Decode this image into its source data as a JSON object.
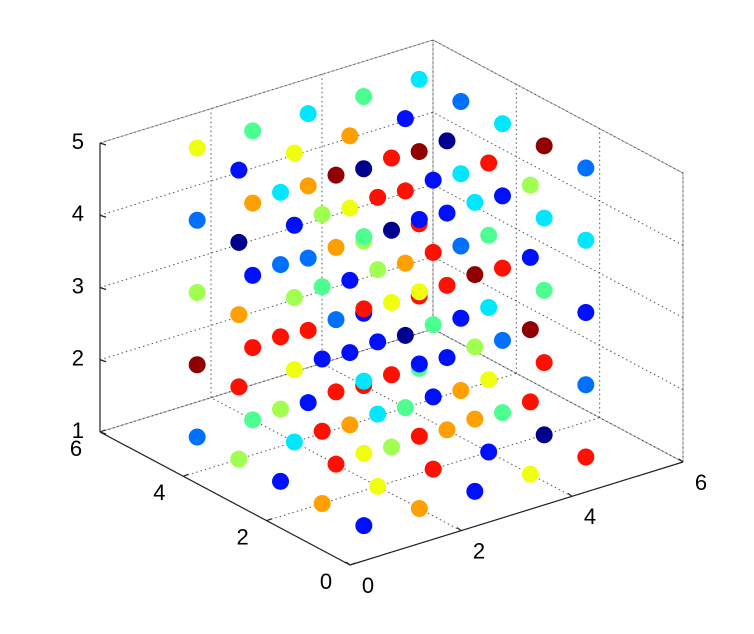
{
  "chart_data": {
    "type": "scatter3d",
    "xlim": [
      0,
      6
    ],
    "ylim": [
      0,
      6
    ],
    "zlim": [
      1,
      5
    ],
    "xticks": [
      0,
      2,
      4,
      6
    ],
    "yticks": [
      0,
      2,
      4,
      6
    ],
    "zticks": [
      1,
      2,
      3,
      4,
      5
    ],
    "grid": true,
    "x": [
      1,
      1,
      1,
      1,
      1,
      1,
      1,
      1,
      1,
      1,
      1,
      1,
      1,
      1,
      1,
      1,
      1,
      1,
      1,
      1,
      1,
      1,
      1,
      1,
      1,
      2,
      2,
      2,
      2,
      2,
      2,
      2,
      2,
      2,
      2,
      2,
      2,
      2,
      2,
      2,
      2,
      2,
      2,
      2,
      2,
      2,
      2,
      2,
      2,
      2,
      3,
      3,
      3,
      3,
      3,
      3,
      3,
      3,
      3,
      3,
      3,
      3,
      3,
      3,
      3,
      3,
      3,
      3,
      3,
      3,
      3,
      3,
      3,
      3,
      3,
      4,
      4,
      4,
      4,
      4,
      4,
      4,
      4,
      4,
      4,
      4,
      4,
      4,
      4,
      4,
      4,
      4,
      4,
      4,
      4,
      4,
      4,
      4,
      4,
      4,
      5,
      5,
      5,
      5,
      5,
      5,
      5,
      5,
      5,
      5,
      5,
      5,
      5,
      5,
      5,
      5,
      5,
      5,
      5,
      5,
      5,
      5,
      5,
      5,
      5
    ],
    "y": [
      1,
      1,
      1,
      1,
      1,
      2,
      2,
      2,
      2,
      2,
      3,
      3,
      3,
      3,
      3,
      4,
      4,
      4,
      4,
      4,
      5,
      5,
      5,
      5,
      5,
      1,
      1,
      1,
      1,
      1,
      2,
      2,
      2,
      2,
      2,
      3,
      3,
      3,
      3,
      3,
      4,
      4,
      4,
      4,
      4,
      5,
      5,
      5,
      5,
      5,
      1,
      1,
      1,
      1,
      1,
      2,
      2,
      2,
      2,
      2,
      3,
      3,
      3,
      3,
      3,
      4,
      4,
      4,
      4,
      4,
      5,
      5,
      5,
      5,
      5,
      1,
      1,
      1,
      1,
      1,
      2,
      2,
      2,
      2,
      2,
      3,
      3,
      3,
      3,
      3,
      4,
      4,
      4,
      4,
      4,
      5,
      5,
      5,
      5,
      5,
      1,
      1,
      1,
      1,
      1,
      2,
      2,
      2,
      2,
      2,
      3,
      3,
      3,
      3,
      3,
      4,
      4,
      4,
      4,
      4,
      5,
      5,
      5,
      5,
      5
    ],
    "z": [
      1,
      2,
      3,
      4,
      5,
      1,
      2,
      3,
      4,
      5,
      1,
      2,
      3,
      4,
      5,
      1,
      2,
      3,
      4,
      5,
      1,
      2,
      3,
      4,
      5,
      1,
      2,
      3,
      4,
      5,
      1,
      2,
      3,
      4,
      5,
      1,
      2,
      3,
      4,
      5,
      1,
      2,
      3,
      4,
      5,
      1,
      2,
      3,
      4,
      5,
      1,
      2,
      3,
      4,
      5,
      1,
      2,
      3,
      4,
      5,
      1,
      2,
      3,
      4,
      5,
      1,
      2,
      3,
      4,
      5,
      1,
      2,
      3,
      4,
      5,
      1,
      2,
      3,
      4,
      5,
      1,
      2,
      3,
      4,
      5,
      1,
      2,
      3,
      4,
      5,
      1,
      2,
      3,
      4,
      5,
      1,
      2,
      3,
      4,
      5,
      1,
      2,
      3,
      4,
      5,
      1,
      2,
      3,
      4,
      5,
      1,
      2,
      3,
      4,
      5,
      1,
      2,
      3,
      4,
      5,
      1,
      2,
      3,
      4,
      5
    ],
    "colors": [
      "#0010ff",
      "#f0ff10",
      "#00e8ff",
      "#ff1000",
      "#4cff90",
      "#ffa000",
      "#ff1000",
      "#0010ff",
      "#4cff90",
      "#a0ff50",
      "#0010ff",
      "#a0ff50",
      "#ff1000",
      "#0070ff",
      "#00e8ff",
      "#a0ff50",
      "#ff1000",
      "#ffa000",
      "#00008f",
      "#0010ff",
      "#0070ff",
      "#900000",
      "#a0ff50",
      "#0070ff",
      "#f0ff10",
      "#ffa000",
      "#ff1000",
      "#0010ff",
      "#f0ff10",
      "#0010ff",
      "#f0ff10",
      "#00e8ff",
      "#0010ff",
      "#a0ff50",
      "#ff1000",
      "#ff1000",
      "#ff1000",
      "#0070ff",
      "#ffa000",
      "#900000",
      "#00e8ff",
      "#f0ff10",
      "#a0ff50",
      "#0010ff",
      "#f0ff10",
      "#4cff90",
      "#ff1000",
      "#0010ff",
      "#ffa000",
      "#4cff90",
      "#0010ff",
      "#ffa000",
      "#a0ff50",
      "#900000",
      "#00e8ff",
      "#ff1000",
      "#0010ff",
      "#4cff90",
      "#ff1000",
      "#0010ff",
      "#a0ff50",
      "#ff1000",
      "#f0ff10",
      "#00008f",
      "#ff1000",
      "#ffa000",
      "#0010ff",
      "#0010ff",
      "#f0ff10",
      "#ffa000",
      "#0010ff",
      "#ff1000",
      "#0070ff",
      "#ffa000",
      "#00e8ff",
      "#f0ff10",
      "#ff1000",
      "#900000",
      "#0010ff",
      "#a0ff50",
      "#0010ff",
      "#f0ff10",
      "#00e8ff",
      "#4cff90",
      "#ff1000",
      "#ffa000",
      "#0010ff",
      "#ff1000",
      "#0010ff",
      "#00008f",
      "#4cff90",
      "#00008f",
      "#ffa000",
      "#ff1000",
      "#0010ff",
      "#ff1000",
      "#0010ff",
      "#a0ff50",
      "#00008f",
      "#4cff90",
      "#ff1000",
      "#0070ff",
      "#0010ff",
      "#00e8ff",
      "#0070ff",
      "#00008f",
      "#ff1000",
      "#4cff90",
      "#00e8ff",
      "#900000",
      "#4cff90",
      "#0070ff",
      "#ff1000",
      "#0010ff",
      "#00e8ff",
      "#ffa000",
      "#0010ff",
      "#0070ff",
      "#00e8ff",
      "#0070ff",
      "#4cff90",
      "#ff1000",
      "#ff1000",
      "#900000",
      "#00e8ff"
    ]
  }
}
